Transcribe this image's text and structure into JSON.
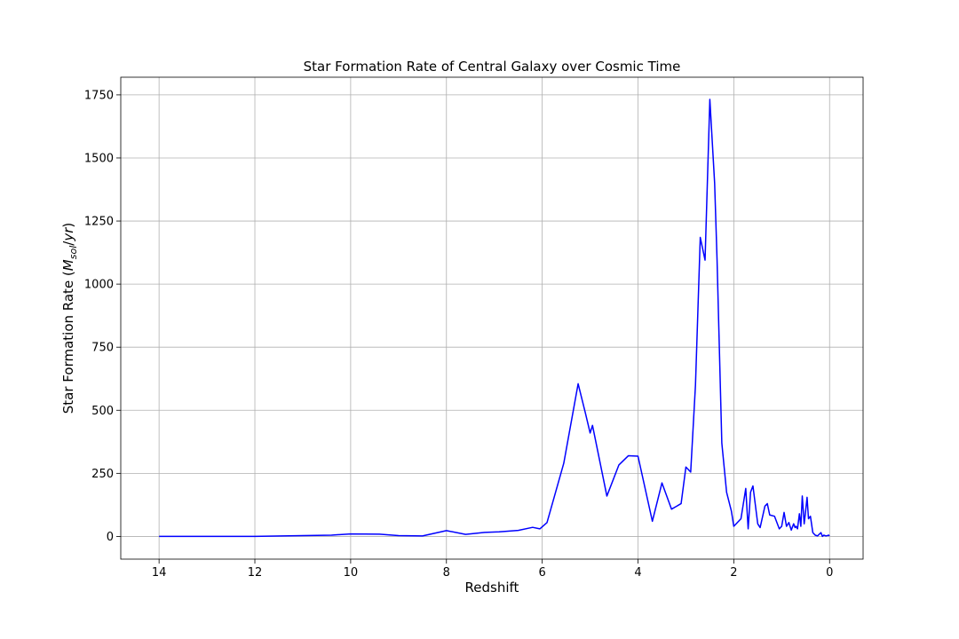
{
  "chart_data": {
    "type": "line",
    "title": "Star Formation Rate of Central Galaxy over Cosmic Time",
    "xlabel": "Redshift",
    "ylabel": "Star Formation Rate (M_sol/yr)",
    "ylabel_parts": {
      "prefix": "Star Formation Rate (",
      "M": "M",
      "sub": "sol",
      "slash": "/",
      "yr": "yr",
      "suffix": ")"
    },
    "xlim": [
      14.8,
      -0.7
    ],
    "ylim": [
      -90,
      1820
    ],
    "xticks": [
      14,
      12,
      10,
      8,
      6,
      4,
      2,
      0
    ],
    "xtick_labels": [
      "14",
      "12",
      "10",
      "8",
      "6",
      "4",
      "2",
      "0"
    ],
    "yticks": [
      0,
      250,
      500,
      750,
      1000,
      1250,
      1500,
      1750
    ],
    "ytick_labels": [
      "0",
      "250",
      "500",
      "750",
      "1000",
      "1250",
      "1500",
      "1750"
    ],
    "grid": true,
    "line_color": "#0000ff",
    "series": [
      {
        "x": [
          14.0,
          12.0,
          11.0,
          10.4,
          10.0,
          9.4,
          9.0,
          8.5,
          8.0,
          7.6,
          7.2,
          6.9,
          6.5,
          6.2,
          6.05,
          5.9,
          5.55,
          5.25,
          5.1,
          5.0,
          4.95,
          4.65,
          4.4,
          4.2,
          4.0,
          3.7,
          3.5,
          3.3,
          3.1,
          3.0,
          2.9,
          2.8,
          2.7,
          2.6,
          2.5,
          2.4,
          2.35,
          2.25,
          2.15,
          2.05,
          2.0,
          1.85,
          1.75,
          1.7,
          1.65,
          1.6,
          1.5,
          1.45,
          1.35,
          1.3,
          1.25,
          1.15,
          1.05,
          1.0,
          0.95,
          0.9,
          0.85,
          0.8,
          0.75,
          0.72,
          0.7,
          0.67,
          0.63,
          0.6,
          0.57,
          0.53,
          0.5,
          0.47,
          0.44,
          0.4,
          0.35,
          0.3,
          0.25,
          0.22,
          0.18,
          0.15,
          0.12,
          0.08,
          0.05,
          0.02,
          0.0
        ],
        "y": [
          0,
          0,
          3,
          5,
          10,
          9,
          3,
          2,
          23,
          8,
          16,
          18,
          24,
          36,
          30,
          55,
          290,
          605,
          490,
          410,
          440,
          160,
          283,
          320,
          318,
          60,
          212,
          108,
          130,
          275,
          255,
          600,
          1185,
          1095,
          1732,
          1400,
          1100,
          370,
          175,
          100,
          40,
          70,
          190,
          30,
          175,
          200,
          50,
          35,
          120,
          130,
          85,
          80,
          30,
          40,
          95,
          40,
          55,
          25,
          50,
          35,
          40,
          30,
          90,
          40,
          160,
          50,
          100,
          155,
          70,
          80,
          15,
          5,
          2,
          8,
          15,
          0,
          5,
          2,
          3,
          5,
          2
        ]
      }
    ]
  }
}
